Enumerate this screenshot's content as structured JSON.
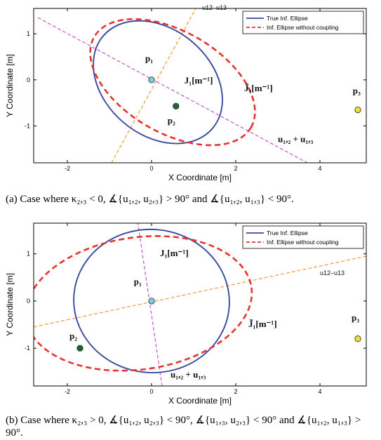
{
  "chart_data": [
    {
      "type": "scatter",
      "xlabel": "X Coordinate [m]",
      "ylabel": "Y Coordinate [m]",
      "xlim": [
        -2.8,
        5.1
      ],
      "ylim": [
        -1.8,
        1.55
      ],
      "xticks": [
        -2,
        0,
        2,
        4
      ],
      "yticks": [
        -1,
        0,
        1
      ],
      "grid": false,
      "legend_position": "top-right",
      "legend": [
        "True Inf. Ellipse",
        "Inf. Ellipse without coupling"
      ],
      "series": [
        {
          "name": "True Inf. Ellipse",
          "kind": "ellipse",
          "color": "#3a4aa0",
          "style": "solid",
          "center": [
            0.15,
            -0.05
          ],
          "a": 1.7,
          "b": 1.15,
          "angle_deg": -40
        },
        {
          "name": "Inf. Ellipse without coupling",
          "kind": "ellipse",
          "color": "#e8322d",
          "style": "dashed",
          "center": [
            0.5,
            -0.05
          ],
          "a": 2.15,
          "b": 1.1,
          "angle_deg": -30
        }
      ],
      "lines": [
        {
          "label": "u12–u13",
          "color": "#f09a3a",
          "p0": [
            -0.95,
            -1.8
          ],
          "p1": [
            1.05,
            1.55
          ]
        },
        {
          "label": "u₁,₂ + u₁,₃",
          "color": "#c05ac8",
          "p0": [
            -2.7,
            1.35
          ],
          "p1": [
            3.7,
            -1.8
          ]
        }
      ],
      "points": [
        {
          "label": "p₁",
          "x": 0.0,
          "y": 0.0,
          "color": "#7ecde0"
        },
        {
          "label": "p₂",
          "x": 0.58,
          "y": -0.57,
          "color": "#1a6b2a"
        },
        {
          "label": "p₃",
          "x": 4.9,
          "y": -0.65,
          "color": "#f2e030"
        }
      ],
      "annotations": [
        {
          "text": "u12–u13",
          "x": 1.2,
          "y": 1.52
        },
        {
          "text": "p₁",
          "x": -0.15,
          "y": 0.4,
          "font": "serif"
        },
        {
          "text": "J₁[m⁻¹]",
          "x": 0.78,
          "y": -0.08,
          "font": "serif"
        },
        {
          "text": "J̃₁[m⁻¹]",
          "x": 2.2,
          "y": -0.25,
          "font": "serif"
        },
        {
          "text": "p₂",
          "x": 0.38,
          "y": -0.95,
          "font": "serif"
        },
        {
          "text": "p₃",
          "x": 4.78,
          "y": -0.3,
          "font": "serif"
        },
        {
          "text": "u₁,₂ + u₁,₃",
          "x": 3.0,
          "y": -1.35,
          "font": "serif"
        }
      ]
    },
    {
      "type": "scatter",
      "xlabel": "X Coordinate [m]",
      "ylabel": "Y Coordinate [m]",
      "xlim": [
        -2.8,
        5.1
      ],
      "ylim": [
        -1.8,
        1.65
      ],
      "xticks": [
        -2,
        0,
        2,
        4
      ],
      "yticks": [
        -1,
        0,
        1
      ],
      "grid": false,
      "legend_position": "top-right",
      "legend": [
        "True Inf. Ellipse",
        "Inf. Ellipse without coupling"
      ],
      "series": [
        {
          "name": "True Inf. Ellipse",
          "kind": "ellipse",
          "color": "#3a4aa0",
          "style": "solid",
          "center": [
            0.0,
            0.0
          ],
          "a": 1.7,
          "b": 1.65,
          "angle_deg": 85
        },
        {
          "name": "Inf. Ellipse without coupling",
          "kind": "ellipse",
          "color": "#e8322d",
          "style": "dashed",
          "center": [
            -0.3,
            -0.05
          ],
          "a": 2.7,
          "b": 1.4,
          "angle_deg": 8
        }
      ],
      "lines": [
        {
          "label": "u12–u13",
          "color": "#f09a3a",
          "p0": [
            -2.8,
            -0.55
          ],
          "p1": [
            5.1,
            0.95
          ]
        },
        {
          "label": "u₁,₂ + u₁,₃",
          "color": "#c05ac8",
          "p0": [
            -0.35,
            1.8
          ],
          "p1": [
            0.25,
            -1.8
          ]
        }
      ],
      "points": [
        {
          "label": "p₁",
          "x": 0.0,
          "y": 0.0,
          "color": "#7ecde0"
        },
        {
          "label": "p₂",
          "x": -1.7,
          "y": -1.0,
          "color": "#1a6b2a"
        },
        {
          "label": "p₃",
          "x": 4.9,
          "y": -0.8,
          "color": "#f2e030"
        }
      ],
      "annotations": [
        {
          "text": "J₁[m⁻¹]",
          "x": 0.2,
          "y": 0.95,
          "font": "serif"
        },
        {
          "text": "p₁",
          "x": -0.42,
          "y": 0.35,
          "font": "serif"
        },
        {
          "text": "u12–u13",
          "x": 4.0,
          "y": 0.55
        },
        {
          "text": "J̃₁[m⁻¹]",
          "x": 2.3,
          "y": -0.55,
          "font": "serif"
        },
        {
          "text": "p₂",
          "x": -1.95,
          "y": -0.8,
          "font": "serif"
        },
        {
          "text": "p₃",
          "x": 4.75,
          "y": -0.42,
          "font": "serif"
        },
        {
          "text": "u₁,₂ + u₁,₃",
          "x": 0.45,
          "y": -1.62,
          "font": "serif"
        }
      ]
    }
  ],
  "captions": {
    "a": "(a) Case where κ₂,₃ < 0, ∡{u₁,₂, u₂,₃} > 90° and ∡{u₁,₂, u₁,₃} < 90°.",
    "b": "(b) Case where κ₂,₃ > 0, ∡{u₁,₂, u₂,₃} < 90°, ∡{u₁,₃, u₂,₃} < 90° and ∡{u₁,₂, u₁,₃} > 90°."
  }
}
